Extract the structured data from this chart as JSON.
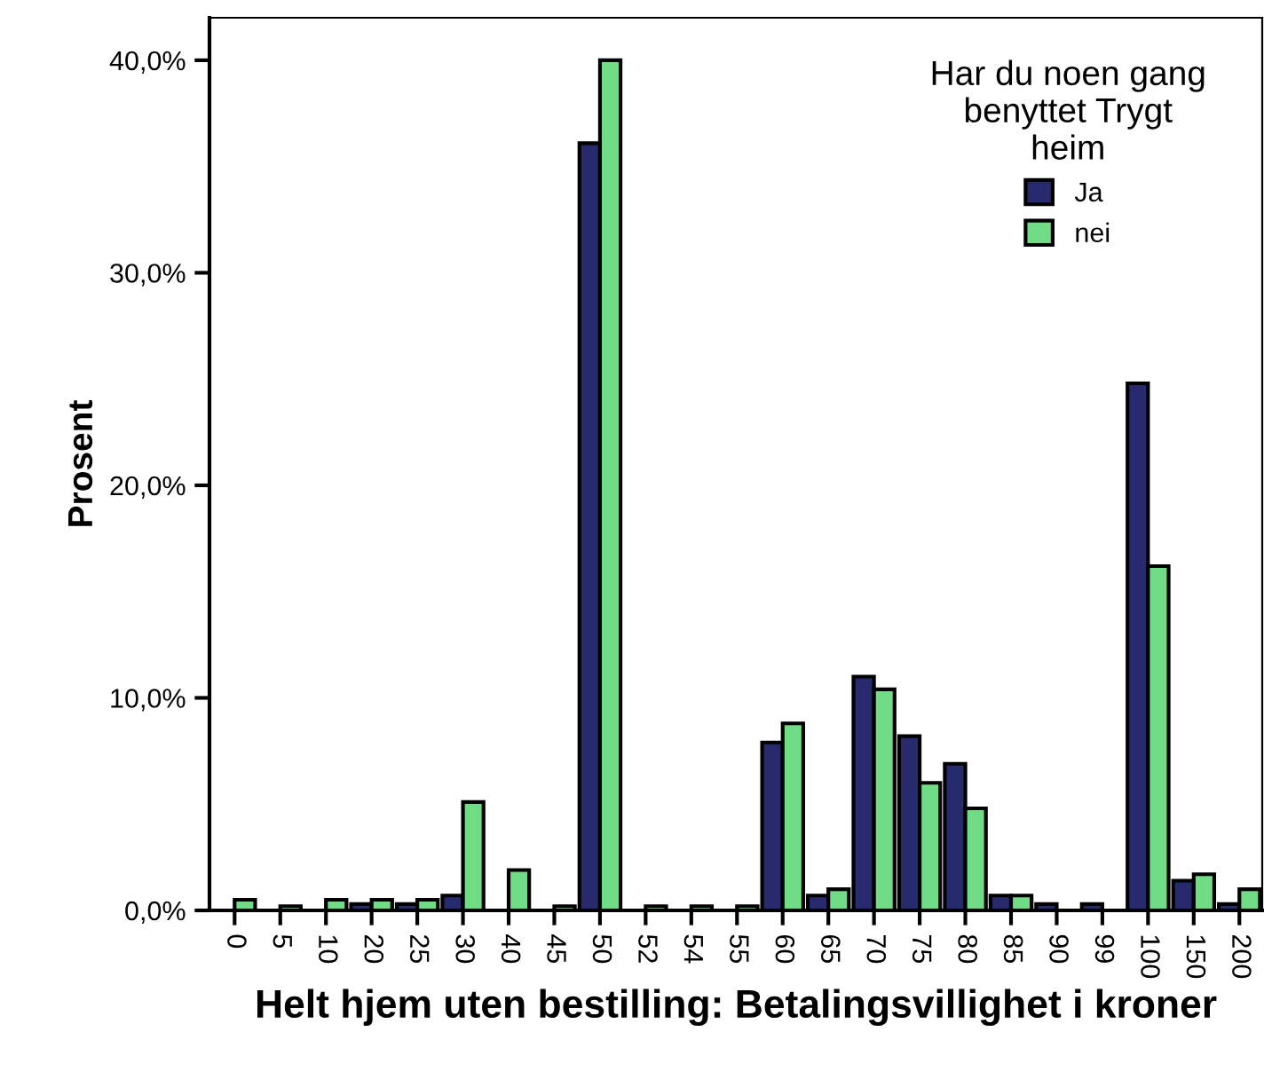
{
  "chart_data": {
    "type": "bar",
    "xlabel": "Helt hjem uten bestilling: Betalingsvillighet i kroner",
    "ylabel": "Prosent",
    "legend_title": "Har du noen gang\nbenyttet Trygt\nheim",
    "categories": [
      "0",
      "5",
      "10",
      "20",
      "25",
      "30",
      "40",
      "45",
      "50",
      "52",
      "54",
      "55",
      "60",
      "65",
      "70",
      "75",
      "80",
      "85",
      "90",
      "99",
      "100",
      "150",
      "200"
    ],
    "series": [
      {
        "name": "Ja",
        "color": "#282a6e",
        "values": [
          null,
          null,
          null,
          0.3,
          0.3,
          0.7,
          null,
          null,
          36.1,
          null,
          null,
          null,
          7.9,
          0.7,
          11.0,
          8.2,
          6.9,
          0.7,
          0.3,
          0.3,
          24.8,
          1.4,
          0.3
        ]
      },
      {
        "name": "nei",
        "color": "#70dc86",
        "values": [
          0.5,
          0.2,
          0.5,
          0.5,
          0.5,
          5.1,
          1.9,
          0.2,
          40.0,
          0.2,
          0.2,
          0.2,
          8.8,
          1.0,
          10.4,
          6.0,
          4.8,
          0.7,
          null,
          null,
          16.2,
          1.7,
          1.0
        ]
      }
    ],
    "ylim": [
      0,
      42
    ],
    "yticks": [
      {
        "value": 0,
        "label": "0,0%"
      },
      {
        "value": 10,
        "label": "10,0%"
      },
      {
        "value": 20,
        "label": "20,0%"
      },
      {
        "value": 30,
        "label": "30,0%"
      },
      {
        "value": 40,
        "label": "40,0%"
      }
    ],
    "grid": false,
    "legend": "top right"
  }
}
